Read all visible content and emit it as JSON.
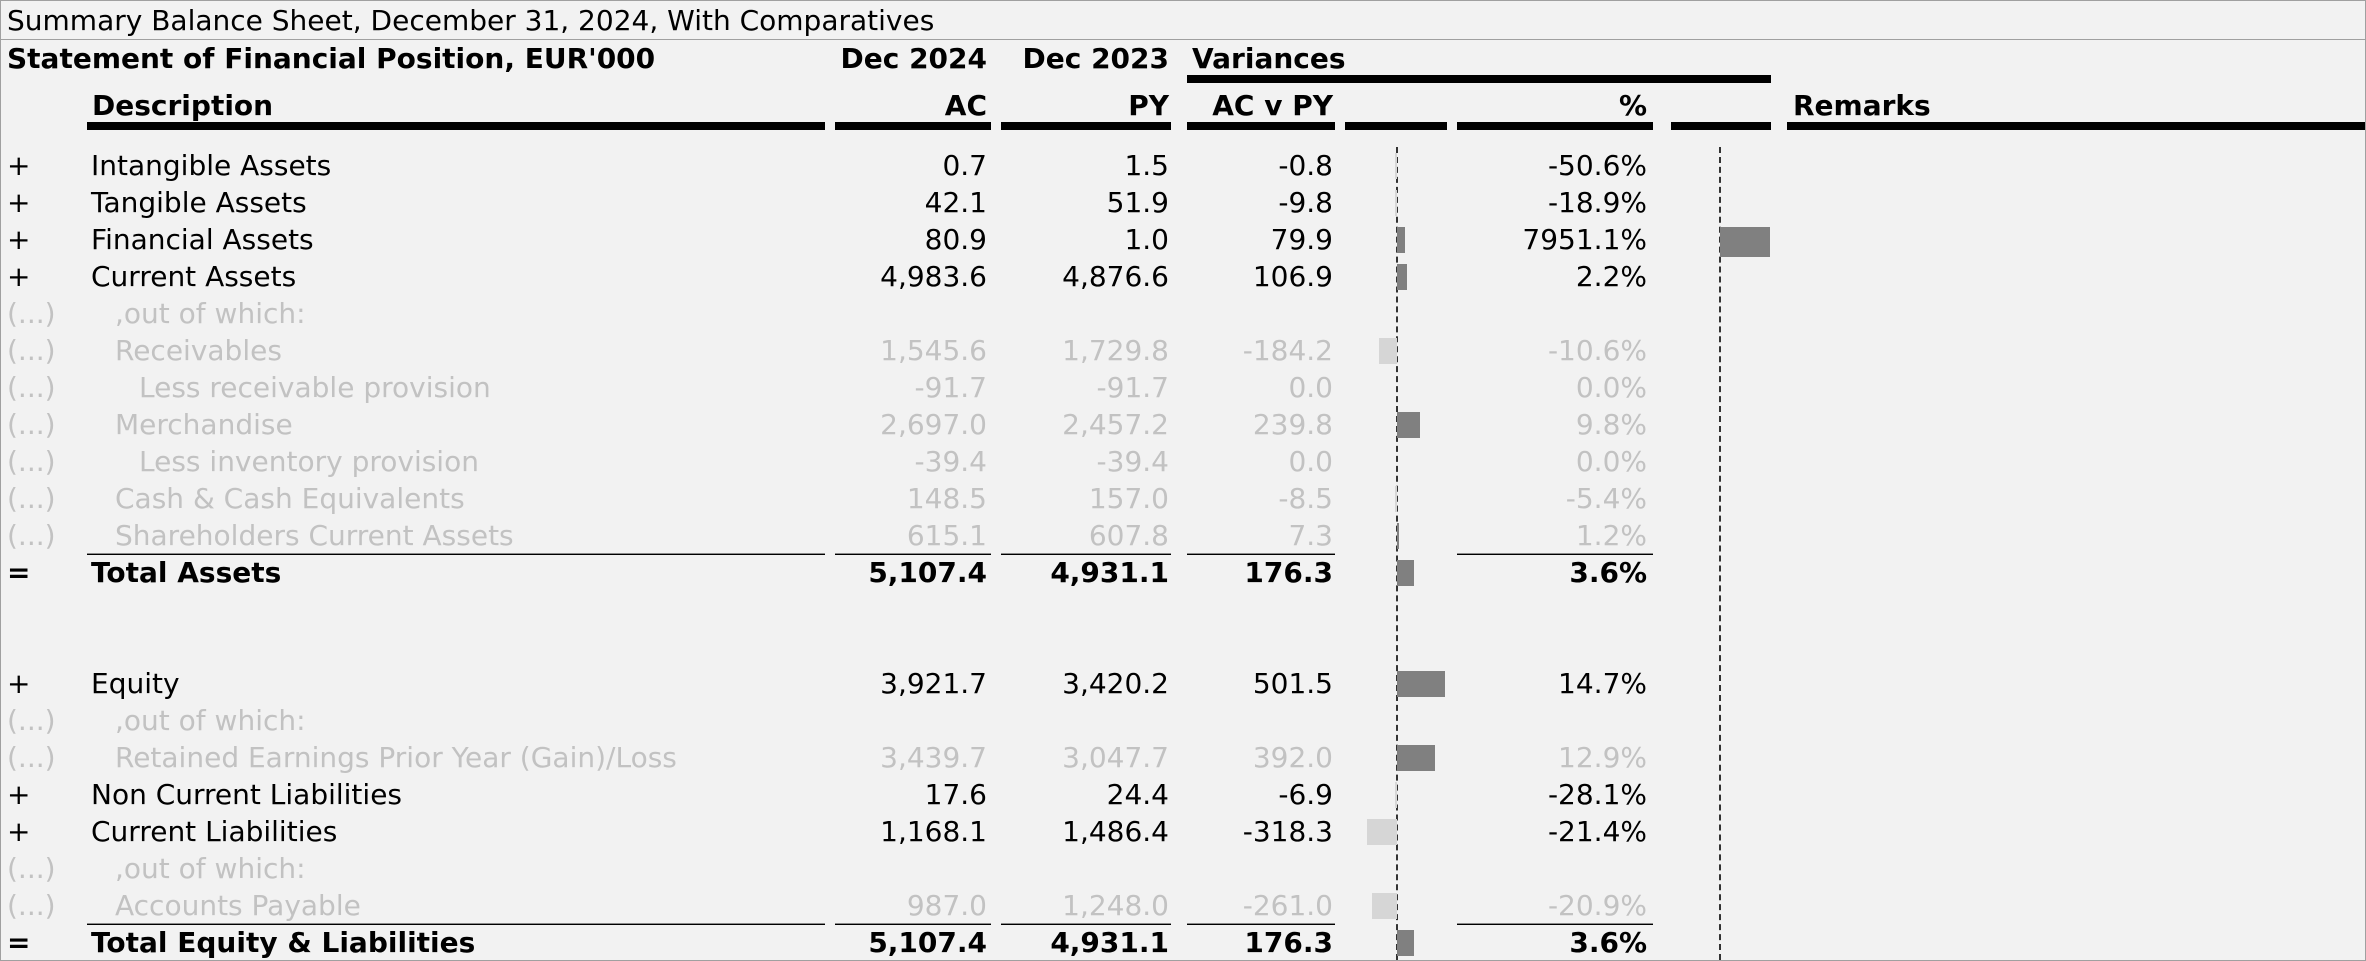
{
  "title": "Summary Balance Sheet, December 31, 2024, With Comparatives",
  "header": {
    "statement": "Statement of Financial Position, EUR'000",
    "col_ac_period": "Dec 2024",
    "col_py_period": "Dec 2023",
    "variances": "Variances",
    "description": "Description",
    "ac": "AC",
    "py": "PY",
    "acvpy": "AC v PY",
    "pct": "%",
    "remarks": "Remarks"
  },
  "colors": {
    "bar_main": "#808080",
    "bar_detail_positive": "#808080",
    "bar_detail_negative": "#d6d6d6"
  },
  "rows": [
    {
      "sign": "+",
      "label": "Intangible Assets",
      "ac": "0.7",
      "py": "1.5",
      "var": "-0.8",
      "pct": "-50.6%",
      "var_value": -0.8,
      "pct_value": -50.6
    },
    {
      "sign": "+",
      "label": "Tangible Assets",
      "ac": "42.1",
      "py": "51.9",
      "var": "-9.8",
      "pct": "-18.9%",
      "var_value": -9.8,
      "pct_value": -18.9
    },
    {
      "sign": "+",
      "label": "Financial Assets",
      "ac": "80.9",
      "py": "1.0",
      "var": "79.9",
      "pct": "7951.1%",
      "var_value": 79.9,
      "pct_value": 7951.1
    },
    {
      "sign": "+",
      "label": "Current Assets",
      "ac": "4,983.6",
      "py": "4,876.6",
      "var": "106.9",
      "pct": "2.2%",
      "var_value": 106.9,
      "pct_value": 2.2
    },
    {
      "sign": "(...)",
      "label": ",out of which:",
      "ac": "",
      "py": "",
      "var": "",
      "pct": "",
      "detail": true
    },
    {
      "sign": "(...)",
      "label": "Receivables",
      "ac": "1,545.6",
      "py": "1,729.8",
      "var": "-184.2",
      "pct": "-10.6%",
      "var_value": -184.2,
      "pct_value": -10.6,
      "detail": true
    },
    {
      "sign": "(...)",
      "label": "Less receivable provision",
      "ac": "-91.7",
      "py": "-91.7",
      "var": "0.0",
      "pct": "0.0%",
      "var_value": 0,
      "pct_value": 0,
      "detail": true,
      "indent": 2
    },
    {
      "sign": "(...)",
      "label": "Merchandise",
      "ac": "2,697.0",
      "py": "2,457.2",
      "var": "239.8",
      "pct": "9.8%",
      "var_value": 239.8,
      "pct_value": 9.8,
      "detail": true
    },
    {
      "sign": "(...)",
      "label": "Less inventory provision",
      "ac": "-39.4",
      "py": "-39.4",
      "var": "0.0",
      "pct": "0.0%",
      "var_value": 0,
      "pct_value": 0,
      "detail": true,
      "indent": 2
    },
    {
      "sign": "(...)",
      "label": "Cash & Cash Equivalents",
      "ac": "148.5",
      "py": "157.0",
      "var": "-8.5",
      "pct": "-5.4%",
      "var_value": -8.5,
      "pct_value": -5.4,
      "detail": true
    },
    {
      "sign": "(...)",
      "label": "Shareholders Current Assets",
      "ac": "615.1",
      "py": "607.8",
      "var": "7.3",
      "pct": "1.2%",
      "var_value": 7.3,
      "pct_value": 1.2,
      "detail": true,
      "underline": true
    },
    {
      "sign": "=",
      "label": "Total Assets",
      "ac": "5,107.4",
      "py": "4,931.1",
      "var": "176.3",
      "pct": "3.6%",
      "var_value": 176.3,
      "pct_value": 3.6,
      "total": true
    },
    {
      "blank": true
    },
    {
      "blank": true
    },
    {
      "sign": "+",
      "label": "Equity",
      "ac": "3,921.7",
      "py": "3,420.2",
      "var": "501.5",
      "pct": "14.7%",
      "var_value": 501.5,
      "pct_value": 14.7
    },
    {
      "sign": "(...)",
      "label": ",out of which:",
      "ac": "",
      "py": "",
      "var": "",
      "pct": "",
      "detail": true
    },
    {
      "sign": "(...)",
      "label": "Retained Earnings Prior Year (Gain)/Loss",
      "ac": "3,439.7",
      "py": "3,047.7",
      "var": "392.0",
      "pct": "12.9%",
      "var_value": 392.0,
      "pct_value": 12.9,
      "detail": true
    },
    {
      "sign": "+",
      "label": "Non Current Liabilities",
      "ac": "17.6",
      "py": "24.4",
      "var": "-6.9",
      "pct": "-28.1%",
      "var_value": -6.9,
      "pct_value": -28.1
    },
    {
      "sign": "+",
      "label": "Current Liabilities",
      "ac": "1,168.1",
      "py": "1,486.4",
      "var": "-318.3",
      "pct": "-21.4%",
      "var_value": -318.3,
      "pct_value": -21.4
    },
    {
      "sign": "(...)",
      "label": ",out of which:",
      "ac": "",
      "py": "",
      "var": "",
      "pct": "",
      "detail": true
    },
    {
      "sign": "(...)",
      "label": "Accounts Payable",
      "ac": "987.0",
      "py": "1,248.0",
      "var": "-261.0",
      "pct": "-20.9%",
      "var_value": -261.0,
      "pct_value": -20.9,
      "detail": true,
      "underline": true
    },
    {
      "sign": "=",
      "label": "Total Equity & Liabilities",
      "ac": "5,107.4",
      "py": "4,931.1",
      "var": "176.3",
      "pct": "3.6%",
      "var_value": 176.3,
      "pct_value": 3.6,
      "total": true
    }
  ]
}
